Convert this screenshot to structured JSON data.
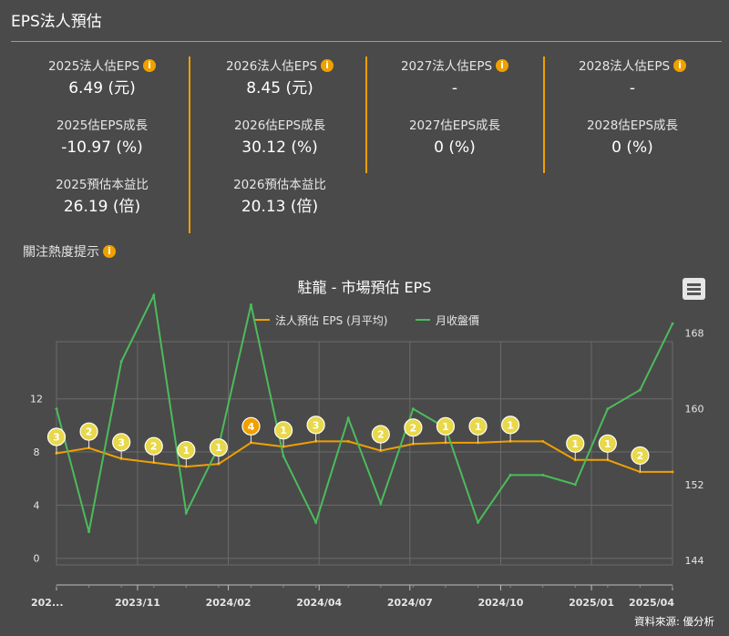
{
  "header": {
    "title": "EPS法人預估"
  },
  "columns": [
    {
      "eps_label": "2025法人估EPS",
      "eps_value": "6.49 (元)",
      "growth_label": "2025估EPS成長",
      "growth_value": "-10.97 (%)",
      "pe_label": "2025預估本益比",
      "pe_value": "26.19 (倍)"
    },
    {
      "eps_label": "2026法人估EPS",
      "eps_value": "8.45 (元)",
      "growth_label": "2026估EPS成長",
      "growth_value": "30.12 (%)",
      "pe_label": "2026預估本益比",
      "pe_value": "20.13 (倍)"
    },
    {
      "eps_label": "2027法人估EPS",
      "eps_value": "-",
      "growth_label": "2027估EPS成長",
      "growth_value": "0 (%)"
    },
    {
      "eps_label": "2028法人估EPS",
      "eps_value": "-",
      "growth_label": "2028估EPS成長",
      "growth_value": "0 (%)"
    }
  ],
  "info_glyph": "i",
  "hint": {
    "label": "關注熱度提示"
  },
  "source": "資料來源: 優分析",
  "colors": {
    "eps": "#f0a000",
    "price": "#4cbb5c",
    "accent": "#f0a000",
    "badge": "#e8d84a",
    "badge_active": "#f0a000"
  },
  "chart_data": {
    "type": "line",
    "title": "駐龍 - 市場預估 EPS",
    "x_tick_labels": [
      "202...",
      "2023/11",
      "2024/02",
      "2024/04",
      "2024/07",
      "2024/10",
      "2025/01",
      "2025/04"
    ],
    "left_axis": {
      "ticks": [
        0,
        4,
        8,
        12
      ],
      "range": [
        -0.5,
        16.3
      ]
    },
    "right_axis": {
      "ticks": [
        144,
        152,
        160,
        168
      ],
      "range": [
        143.5,
        167.1
      ]
    },
    "grid": true,
    "legend_position": "top",
    "series": [
      {
        "name": "法人預估 EPS (月平均)",
        "axis": "left",
        "color": "#f0a000",
        "x": [
          0,
          1,
          2,
          3,
          4,
          5,
          6,
          7,
          8,
          9,
          10,
          11,
          12,
          13,
          14,
          15,
          16,
          17,
          18,
          19
        ],
        "values": [
          7.9,
          8.3,
          7.5,
          7.2,
          6.9,
          7.1,
          8.7,
          8.4,
          8.8,
          8.8,
          8.1,
          8.6,
          8.7,
          8.7,
          8.8,
          8.8,
          7.4,
          7.4,
          6.5,
          6.5
        ]
      },
      {
        "name": "月收盤價",
        "axis": "right",
        "color": "#4cbb5c",
        "x": [
          0,
          1,
          2,
          3,
          4,
          5,
          6,
          7,
          8,
          9,
          10,
          11,
          12,
          13,
          14,
          15,
          16,
          17,
          18,
          19
        ],
        "values": [
          160,
          147,
          165,
          172,
          149,
          156,
          171,
          155,
          148,
          159,
          150,
          160,
          158,
          148,
          153,
          153,
          152,
          160,
          162,
          169
        ]
      }
    ],
    "annotations": [
      {
        "x": 0,
        "y": 7.9,
        "label": "3"
      },
      {
        "x": 1,
        "y": 8.3,
        "label": "2"
      },
      {
        "x": 2,
        "y": 7.5,
        "label": "3"
      },
      {
        "x": 3,
        "y": 7.2,
        "label": "2"
      },
      {
        "x": 4,
        "y": 6.9,
        "label": "1"
      },
      {
        "x": 5,
        "y": 7.1,
        "label": "1"
      },
      {
        "x": 6,
        "y": 8.7,
        "label": "4",
        "active": true
      },
      {
        "x": 7,
        "y": 8.4,
        "label": "1"
      },
      {
        "x": 8,
        "y": 8.8,
        "label": "3"
      },
      {
        "x": 10,
        "y": 8.1,
        "label": "2"
      },
      {
        "x": 11,
        "y": 8.6,
        "label": "2"
      },
      {
        "x": 12,
        "y": 8.7,
        "label": "1"
      },
      {
        "x": 13,
        "y": 8.7,
        "label": "1"
      },
      {
        "x": 14,
        "y": 8.8,
        "label": "1"
      },
      {
        "x": 16,
        "y": 7.4,
        "label": "1"
      },
      {
        "x": 17,
        "y": 7.4,
        "label": "1"
      },
      {
        "x": 18,
        "y": 6.5,
        "label": "2"
      }
    ]
  }
}
